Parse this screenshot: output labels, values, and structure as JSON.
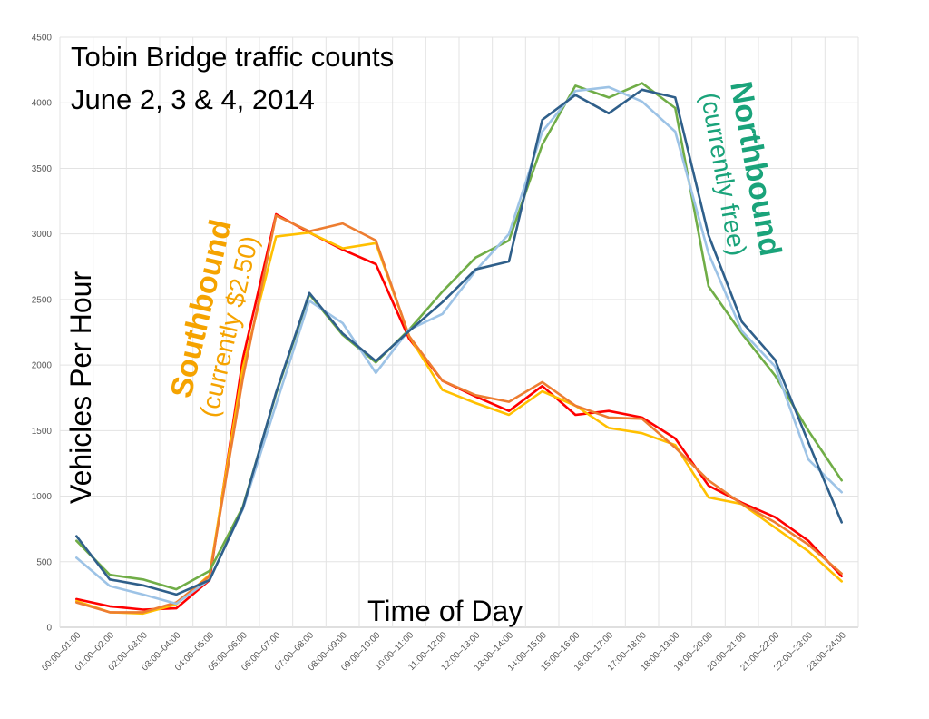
{
  "chart_data": {
    "type": "line",
    "title_line1": "Tobin Bridge traffic counts",
    "title_line2": "June 2, 3 & 4, 2014",
    "xlabel": "Time of Day",
    "ylabel": "Vehicles Per Hour",
    "ylim": [
      0,
      4500
    ],
    "yticks": [
      0,
      500,
      1000,
      1500,
      2000,
      2500,
      3000,
      3500,
      4000,
      4500
    ],
    "grid": true,
    "categories": [
      "00:00–01:00",
      "01:00–02:00",
      "02:00–03:00",
      "03:00–04:00",
      "04:00–05:00",
      "05:00–06:00",
      "06:00–07:00",
      "07:00–08:00",
      "08:00–09:00",
      "09:00–10:00",
      "10:00–11:00",
      "11:00–12:00",
      "12:00–13:00",
      "13:00–14:00",
      "14:00–15:00",
      "15:00–16:00",
      "16:00–17:00",
      "17:00–18:00",
      "18:00–19:00",
      "19:00–20:00",
      "20:00–21:00",
      "21:00–22:00",
      "22:00–23:00",
      "23:00–24:00"
    ],
    "annotations": {
      "southbound": {
        "label": "Southbound",
        "sublabel": "(currently $2.50)",
        "color": "#f5a300",
        "subcolor": "#f5a300"
      },
      "northbound": {
        "label": "Northbound",
        "sublabel": "(currently free)",
        "color": "#1aa37a",
        "subcolor": "#1aa37a"
      }
    },
    "series": [
      {
        "color": "#ff0000",
        "values": [
          215,
          160,
          135,
          145,
          360,
          2050,
          3150,
          3010,
          2880,
          2770,
          2200,
          1880,
          1760,
          1650,
          1840,
          1620,
          1650,
          1600,
          1440,
          1080,
          950,
          840,
          660,
          390
        ]
      },
      {
        "color": "#ffc000",
        "values": [
          200,
          115,
          105,
          175,
          400,
          1980,
          2980,
          3010,
          2890,
          2930,
          2220,
          1810,
          1710,
          1620,
          1800,
          1690,
          1520,
          1480,
          1390,
          990,
          940,
          760,
          580,
          350
        ]
      },
      {
        "color": "#ed7d31",
        "values": [
          190,
          115,
          115,
          190,
          390,
          1900,
          3140,
          3020,
          3080,
          2950,
          2220,
          1880,
          1770,
          1720,
          1870,
          1690,
          1600,
          1590,
          1370,
          1120,
          940,
          800,
          630,
          410
        ]
      },
      {
        "color": "#70ad47",
        "values": [
          660,
          400,
          365,
          290,
          430,
          920,
          1780,
          2540,
          2230,
          2020,
          2270,
          2560,
          2820,
          2950,
          3680,
          4130,
          4040,
          4150,
          3960,
          2600,
          2240,
          1920,
          1500,
          1120
        ]
      },
      {
        "color": "#9dc3e6",
        "values": [
          530,
          315,
          250,
          180,
          365,
          900,
          1700,
          2490,
          2320,
          1940,
          2270,
          2390,
          2720,
          3000,
          3780,
          4090,
          4120,
          4010,
          3780,
          2850,
          2260,
          1990,
          1280,
          1030
        ]
      },
      {
        "color": "#2f5f8a",
        "values": [
          695,
          365,
          320,
          250,
          360,
          910,
          1790,
          2550,
          2240,
          2030,
          2260,
          2480,
          2730,
          2790,
          3870,
          4060,
          3920,
          4100,
          4040,
          2990,
          2330,
          2040,
          1410,
          800
        ]
      }
    ]
  }
}
